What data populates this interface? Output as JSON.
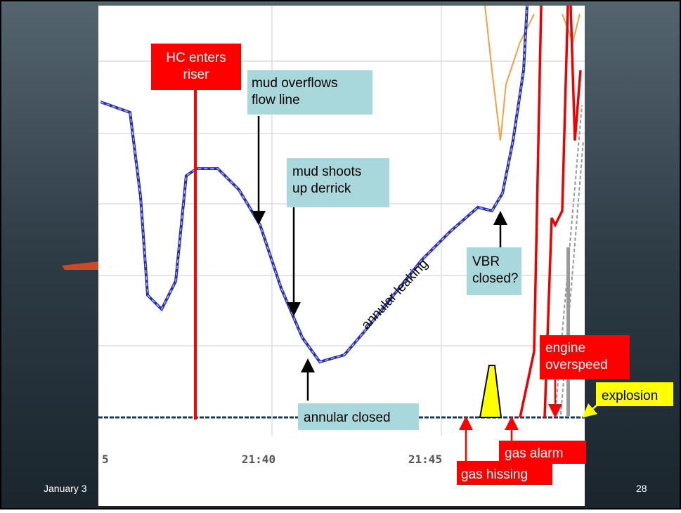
{
  "slide": {
    "footer_left": "January 3",
    "page_number": "28",
    "x_tick_labels": [
      "5",
      "21:40",
      "21:45"
    ],
    "annotations": {
      "hc_enters": "HC enters riser",
      "mud_overflows": "mud overflows flow line",
      "mud_shoots": "mud shoots up derrick",
      "annular_leaking": "annular leaking",
      "vbr_closed": "VBR closed?",
      "annular_closed": "annular closed",
      "engine_overspeed": "engine overspeed",
      "explosion": "explosion",
      "gas_alarm": "gas alarm",
      "gas_hissing": "gas hissing"
    }
  }
}
